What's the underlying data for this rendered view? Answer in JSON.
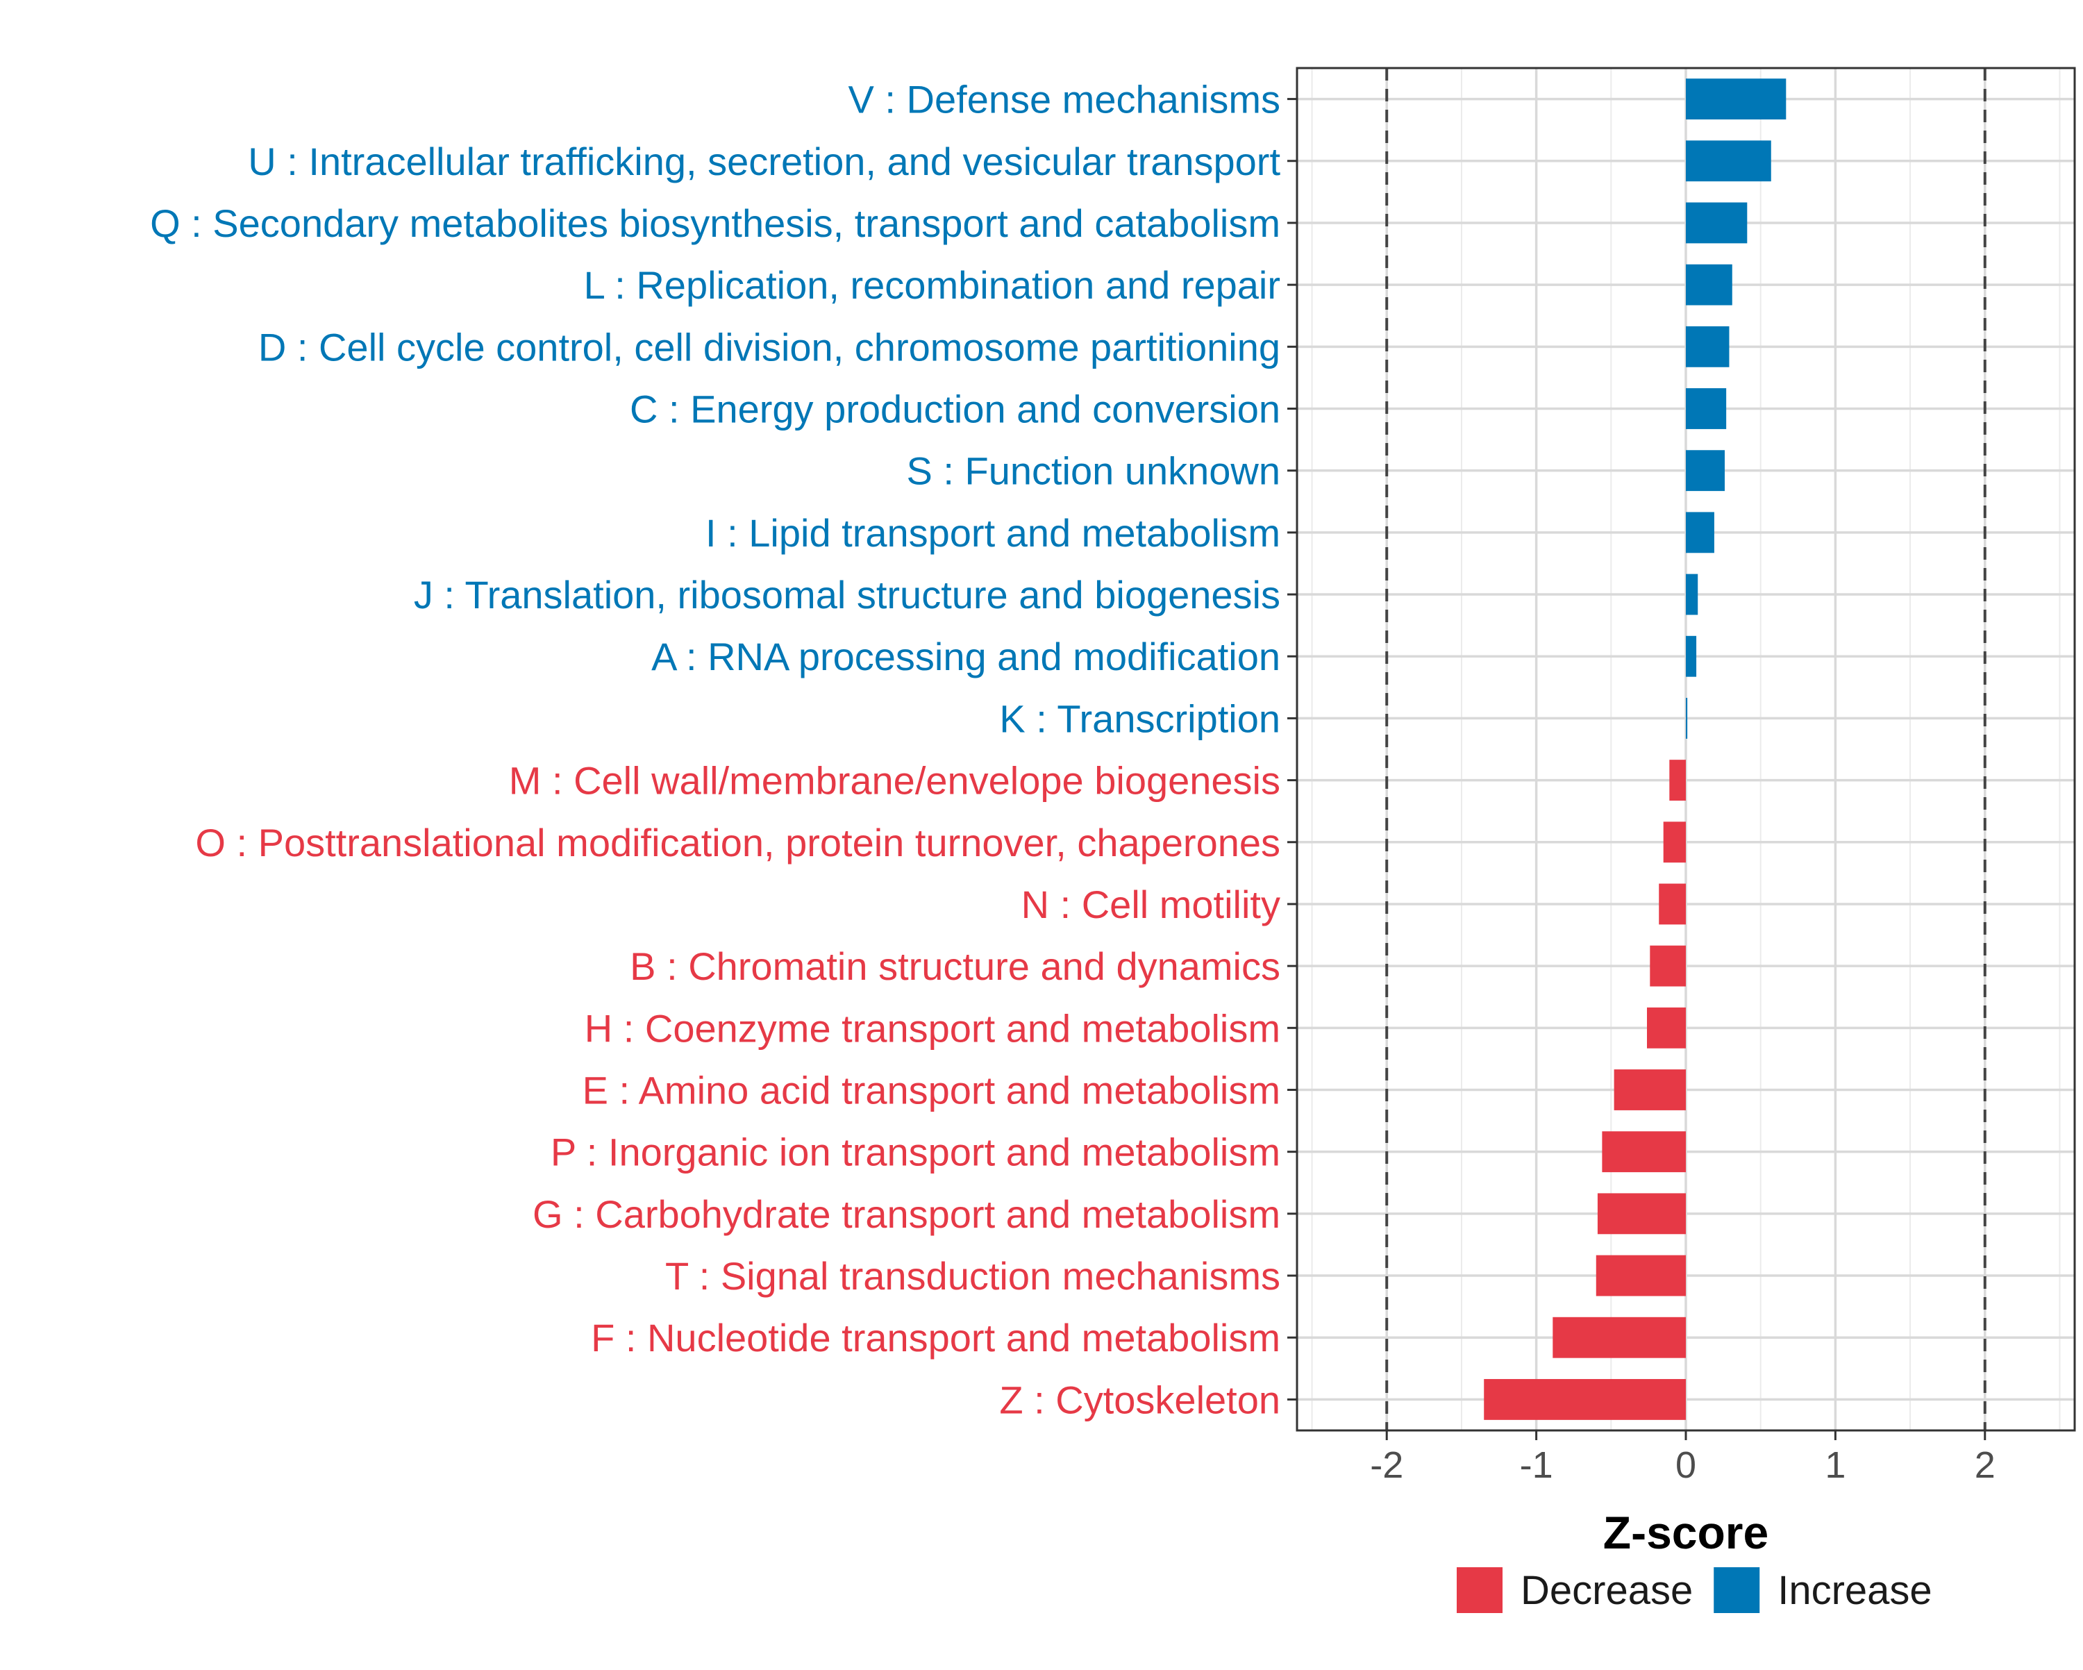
{
  "chart_data": {
    "type": "bar",
    "orientation": "horizontal",
    "xlabel": "Z-score",
    "ylabel": "",
    "xlim": [
      -2.6,
      2.6
    ],
    "x_ticks": [
      -2,
      -1,
      0,
      1,
      2
    ],
    "x_tick_labels": [
      "-2",
      "-1",
      "0",
      "1",
      "2"
    ],
    "reference_lines": [
      -2,
      2
    ],
    "grid": true,
    "legend_position": "bottom",
    "legend": [
      {
        "name": "Decrease",
        "color": "#e63946"
      },
      {
        "name": "Increase",
        "color": "#0077b6"
      }
    ],
    "categories": [
      "V : Defense mechanisms",
      "U : Intracellular trafficking, secretion, and vesicular transport",
      "Q : Secondary metabolites biosynthesis, transport and catabolism",
      "L : Replication, recombination and repair",
      "D : Cell cycle control, cell division, chromosome partitioning",
      "C : Energy production and conversion",
      "S : Function unknown",
      "I : Lipid transport and metabolism",
      "J : Translation, ribosomal structure and biogenesis",
      "A : RNA processing and modification",
      "K : Transcription",
      "M : Cell wall/membrane/envelope biogenesis",
      "O : Posttranslational modification, protein turnover, chaperones",
      "N : Cell motility",
      "B : Chromatin structure and dynamics",
      "H : Coenzyme transport and metabolism",
      "E : Amino acid transport and metabolism",
      "P : Inorganic ion transport and metabolism",
      "G : Carbohydrate transport and metabolism",
      "T : Signal transduction mechanisms",
      "F : Nucleotide transport and metabolism",
      "Z : Cytoskeleton"
    ],
    "values": [
      0.67,
      0.57,
      0.41,
      0.31,
      0.29,
      0.27,
      0.26,
      0.19,
      0.08,
      0.07,
      0.01,
      -0.11,
      -0.15,
      -0.18,
      -0.24,
      -0.26,
      -0.48,
      -0.56,
      -0.59,
      -0.6,
      -0.89,
      -1.35
    ],
    "groups": [
      "Increase",
      "Increase",
      "Increase",
      "Increase",
      "Increase",
      "Increase",
      "Increase",
      "Increase",
      "Increase",
      "Increase",
      "Increase",
      "Decrease",
      "Decrease",
      "Decrease",
      "Decrease",
      "Decrease",
      "Decrease",
      "Decrease",
      "Decrease",
      "Decrease",
      "Decrease",
      "Decrease"
    ],
    "colors": {
      "Increase": "#0077b6",
      "Decrease": "#e63946"
    }
  }
}
